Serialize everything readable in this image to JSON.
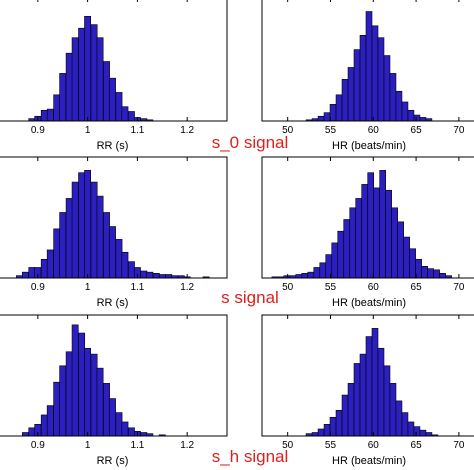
{
  "colors": {
    "bar_fill": "#2b1fbf",
    "bar_edge": "#000000",
    "signal_text": "#e0201c"
  },
  "panels": [
    {
      "signal_label": "s_0 signal"
    },
    {
      "signal_label": "s signal"
    },
    {
      "signal_label": "s_h signal"
    }
  ],
  "chart_data": [
    {
      "type": "bar",
      "variable": "RR",
      "signal": "s_0 signal",
      "xlabel": "RR (s)",
      "xlim": [
        0.82,
        1.28
      ],
      "xticks": [
        0.9,
        1,
        1.1,
        1.2
      ],
      "xtick_labels": [
        "0.9",
        "1",
        "1.1",
        "1.2"
      ],
      "bin_width": 0.0125,
      "bins": [
        0.888,
        0.9,
        0.913,
        0.925,
        0.938,
        0.95,
        0.963,
        0.975,
        0.988,
        1.0,
        1.013,
        1.025,
        1.038,
        1.05,
        1.063,
        1.075,
        1.088,
        1.1,
        1.113,
        1.125
      ],
      "values": [
        2,
        4,
        9,
        10,
        22,
        40,
        57,
        70,
        78,
        88,
        81,
        70,
        50,
        36,
        24,
        12,
        8,
        3,
        2,
        1
      ]
    },
    {
      "type": "bar",
      "variable": "HR",
      "signal": "s_0 signal",
      "xlabel": "HR (beats/min)",
      "xlim": [
        47,
        72
      ],
      "xticks": [
        50,
        55,
        60,
        65,
        70
      ],
      "xtick_labels": [
        "50",
        "55",
        "60",
        "65",
        "70"
      ],
      "bin_width": 0.7,
      "bins": [
        52.5,
        53.2,
        53.9,
        54.6,
        55.3,
        56.0,
        56.7,
        57.4,
        58.1,
        58.8,
        59.5,
        60.2,
        60.9,
        61.6,
        62.3,
        63.0,
        63.7,
        64.4,
        65.1,
        65.8,
        66.5
      ],
      "values": [
        1,
        2,
        4,
        7,
        14,
        22,
        35,
        45,
        60,
        72,
        92,
        80,
        70,
        55,
        40,
        25,
        16,
        9,
        5,
        3,
        2
      ]
    },
    {
      "type": "bar",
      "variable": "RR",
      "signal": "s signal",
      "xlabel": "RR (s)",
      "xlim": [
        0.82,
        1.28
      ],
      "xticks": [
        0.9,
        1,
        1.1,
        1.2
      ],
      "xtick_labels": [
        "0.9",
        "1",
        "1.1",
        "1.2"
      ],
      "bin_width": 0.0125,
      "bins": [
        0.863,
        0.875,
        0.888,
        0.9,
        0.913,
        0.925,
        0.938,
        0.95,
        0.963,
        0.975,
        0.988,
        1.0,
        1.013,
        1.025,
        1.038,
        1.05,
        1.063,
        1.075,
        1.088,
        1.1,
        1.113,
        1.125,
        1.138,
        1.15,
        1.163,
        1.175,
        1.188,
        1.2,
        1.238
      ],
      "values": [
        2,
        5,
        9,
        9,
        16,
        24,
        42,
        56,
        68,
        82,
        90,
        92,
        82,
        70,
        56,
        44,
        33,
        22,
        14,
        9,
        6,
        5,
        4,
        3,
        3,
        2,
        2,
        1,
        1
      ]
    },
    {
      "type": "bar",
      "variable": "HR",
      "signal": "s signal",
      "xlabel": "HR (beats/min)",
      "xlim": [
        47,
        72
      ],
      "xticks": [
        50,
        55,
        60,
        65,
        70
      ],
      "xtick_labels": [
        "50",
        "55",
        "60",
        "65",
        "70"
      ],
      "bin_width": 0.7,
      "bins": [
        48.5,
        49.2,
        49.9,
        50.6,
        51.3,
        52.0,
        52.7,
        53.4,
        54.1,
        54.8,
        55.5,
        56.2,
        56.9,
        57.6,
        58.3,
        59.0,
        59.7,
        60.4,
        61.1,
        61.8,
        62.5,
        63.2,
        63.9,
        64.6,
        65.3,
        66.0,
        66.7,
        67.4,
        68.1,
        68.8
      ],
      "values": [
        1,
        1,
        2,
        2,
        3,
        4,
        5,
        9,
        13,
        20,
        30,
        40,
        50,
        60,
        68,
        80,
        90,
        77,
        92,
        75,
        60,
        48,
        35,
        25,
        16,
        10,
        8,
        7,
        4,
        2
      ]
    },
    {
      "type": "bar",
      "variable": "RR",
      "signal": "s_h signal",
      "xlabel": "RR (s)",
      "xlim": [
        0.82,
        1.28
      ],
      "xticks": [
        0.9,
        1,
        1.1,
        1.2
      ],
      "xtick_labels": [
        "0.9",
        "1",
        "1.1",
        "1.2"
      ],
      "bin_width": 0.0125,
      "bins": [
        0.875,
        0.888,
        0.9,
        0.913,
        0.925,
        0.938,
        0.95,
        0.963,
        0.975,
        0.988,
        1.0,
        1.013,
        1.025,
        1.038,
        1.05,
        1.063,
        1.075,
        1.088,
        1.1,
        1.113,
        1.125,
        1.15
      ],
      "values": [
        3,
        7,
        10,
        18,
        26,
        46,
        60,
        72,
        95,
        88,
        75,
        70,
        58,
        45,
        32,
        20,
        12,
        7,
        4,
        3,
        2,
        1
      ]
    },
    {
      "type": "bar",
      "variable": "HR",
      "signal": "s_h signal",
      "xlabel": "HR (beats/min)",
      "xlim": [
        47,
        72
      ],
      "xticks": [
        50,
        55,
        60,
        65,
        70
      ],
      "xtick_labels": [
        "50",
        "55",
        "60",
        "65",
        "70"
      ],
      "bin_width": 0.7,
      "bins": [
        52.5,
        53.2,
        53.9,
        54.6,
        55.3,
        56.0,
        56.7,
        57.4,
        58.1,
        58.8,
        59.5,
        60.2,
        60.9,
        61.6,
        62.3,
        63.0,
        63.7,
        64.4,
        65.1,
        65.8,
        66.5,
        67.2
      ],
      "values": [
        2,
        3,
        6,
        10,
        16,
        22,
        35,
        45,
        62,
        70,
        85,
        92,
        75,
        60,
        45,
        30,
        20,
        12,
        8,
        5,
        3,
        1
      ]
    }
  ]
}
